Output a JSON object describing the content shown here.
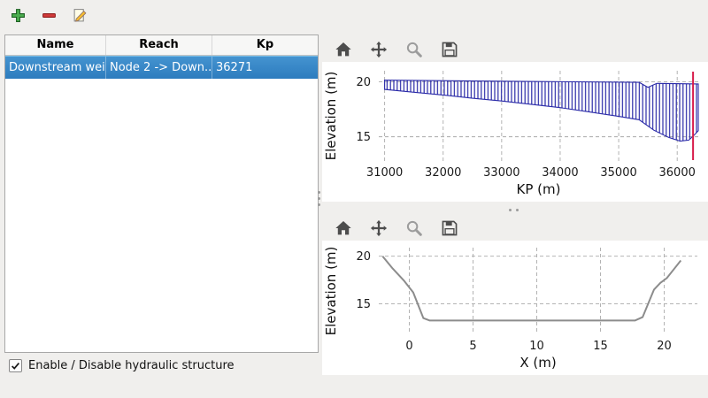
{
  "main_toolbar": {
    "buttons": [
      {
        "name": "add-structure",
        "icon": "plus-icon",
        "color": "#4caf50"
      },
      {
        "name": "remove-structure",
        "icon": "minus-icon",
        "color": "#d23b3b"
      },
      {
        "name": "edit-structure",
        "icon": "edit-pencil-icon",
        "color": "#fbc02d"
      }
    ]
  },
  "structures_table": {
    "headers": [
      "Name",
      "Reach",
      "Kp"
    ],
    "rows": [
      {
        "name": "Downstream weir",
        "reach": "Node 2 -> Down...",
        "kp": "36271"
      }
    ],
    "selected_row": 0,
    "selection_color": "#3a8bcb"
  },
  "enable_checkbox": {
    "label": "Enable / Disable hydraulic structure",
    "checked": true
  },
  "chart_toolbar": {
    "icons": [
      "home-icon",
      "pan-icon",
      "zoom-icon",
      "save-icon"
    ]
  },
  "chart_data": [
    {
      "type": "area",
      "title": "",
      "xlabel": "KP (m)",
      "ylabel": "Elevation (m)",
      "xlim": [
        30900,
        36360
      ],
      "ylim": [
        12.8,
        21.0
      ],
      "xticks": [
        31000,
        32000,
        33000,
        34000,
        35000,
        36000
      ],
      "yticks": [
        15,
        20
      ],
      "grid": true,
      "series": [
        {
          "kind": "band",
          "name": "longitudinal-bed-profile",
          "color": "#2a2aa8",
          "hatch": "vertical",
          "top": [
            [
              31000,
              20.15
            ],
            [
              33000,
              20.05
            ],
            [
              35350,
              19.95
            ],
            [
              35500,
              19.5
            ],
            [
              35650,
              19.85
            ],
            [
              36360,
              19.8
            ]
          ],
          "bottom": [
            [
              31000,
              19.3
            ],
            [
              31500,
              19.05
            ],
            [
              32000,
              18.8
            ],
            [
              32500,
              18.5
            ],
            [
              33000,
              18.25
            ],
            [
              33500,
              17.95
            ],
            [
              34000,
              17.65
            ],
            [
              34500,
              17.25
            ],
            [
              35000,
              16.85
            ],
            [
              35350,
              16.55
            ],
            [
              35600,
              15.6
            ],
            [
              35850,
              14.95
            ],
            [
              36050,
              14.6
            ],
            [
              36200,
              14.7
            ],
            [
              36300,
              15.2
            ],
            [
              36360,
              15.55
            ]
          ]
        },
        {
          "kind": "vline",
          "name": "structure-kp-marker",
          "x": 36271,
          "color": "#d81b4a",
          "width": 2
        }
      ]
    },
    {
      "type": "line",
      "title": "",
      "xlabel": "X (m)",
      "ylabel": "Elevation (m)",
      "xlim": [
        -2.4,
        22.6
      ],
      "ylim": [
        11.8,
        20.9
      ],
      "xticks": [
        0,
        5,
        10,
        15,
        20
      ],
      "yticks": [
        15,
        20
      ],
      "grid": true,
      "series": [
        {
          "kind": "line",
          "name": "cross-section-profile",
          "color": "#8c8c8c",
          "width": 2,
          "points": [
            [
              -2.1,
              20.0
            ],
            [
              -1.3,
              18.7
            ],
            [
              -0.4,
              17.4
            ],
            [
              0.3,
              16.2
            ],
            [
              1.1,
              13.5
            ],
            [
              1.6,
              13.25
            ],
            [
              17.7,
              13.25
            ],
            [
              18.3,
              13.6
            ],
            [
              19.2,
              16.5
            ],
            [
              19.7,
              17.2
            ],
            [
              20.2,
              17.7
            ],
            [
              21.3,
              19.55
            ]
          ]
        }
      ]
    }
  ]
}
